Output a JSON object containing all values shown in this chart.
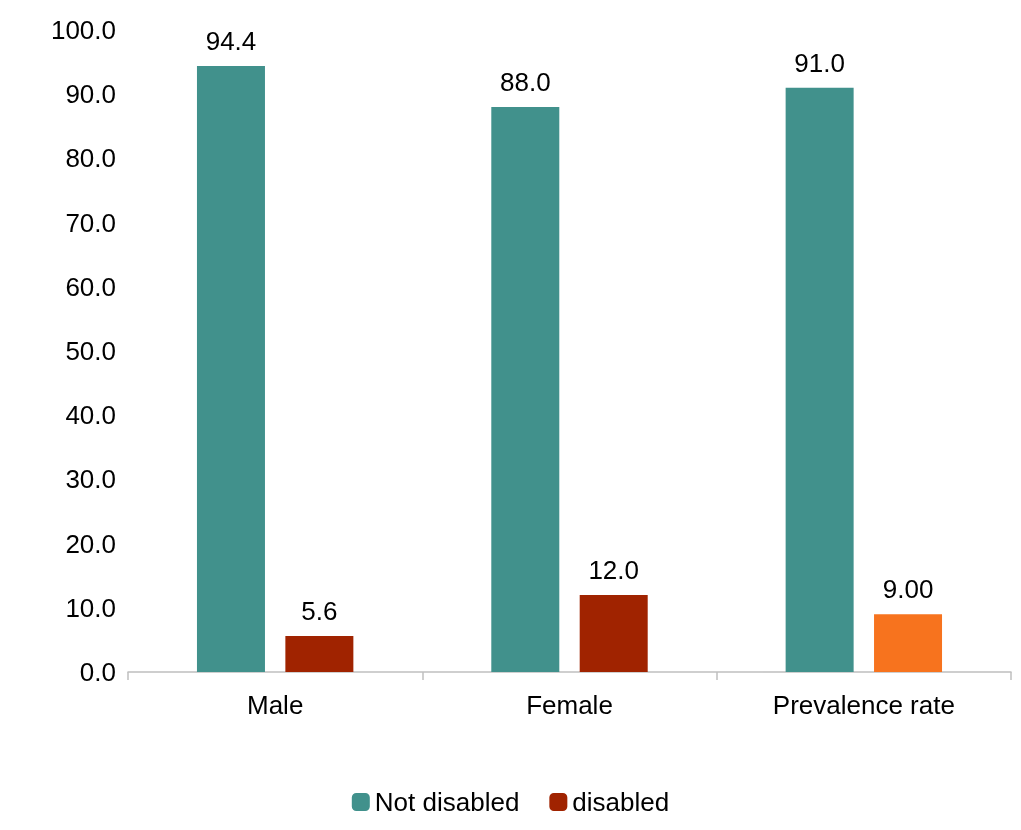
{
  "chart_data": {
    "type": "bar",
    "categories": [
      "Male",
      "Female",
      "Prevalence rate"
    ],
    "series": [
      {
        "name": "Not disabled",
        "color": "#41918c",
        "values": [
          94.4,
          88.0,
          91.0
        ],
        "value_labels": [
          "94.4",
          "88.0",
          "91.0"
        ]
      },
      {
        "name": "disabled",
        "color": "#a02300",
        "colors": [
          "#a02300",
          "#a02300",
          "#f7731e"
        ],
        "values": [
          5.6,
          12.0,
          9.0
        ],
        "value_labels": [
          "5.6",
          "12.0",
          "9.00"
        ]
      }
    ],
    "ylim": [
      0,
      100
    ],
    "yticks": [
      {
        "value": 0,
        "label": "0.0"
      },
      {
        "value": 10,
        "label": "10.0"
      },
      {
        "value": 20,
        "label": "20.0"
      },
      {
        "value": 30,
        "label": "30.0"
      },
      {
        "value": 40,
        "label": "40.0"
      },
      {
        "value": 50,
        "label": "50.0"
      },
      {
        "value": 60,
        "label": "60.0"
      },
      {
        "value": 70,
        "label": "70.0"
      },
      {
        "value": 80,
        "label": "80.0"
      },
      {
        "value": 90,
        "label": "90.0"
      },
      {
        "value": 100,
        "label": "100.0"
      }
    ],
    "grid": false,
    "legend": "bottom"
  }
}
